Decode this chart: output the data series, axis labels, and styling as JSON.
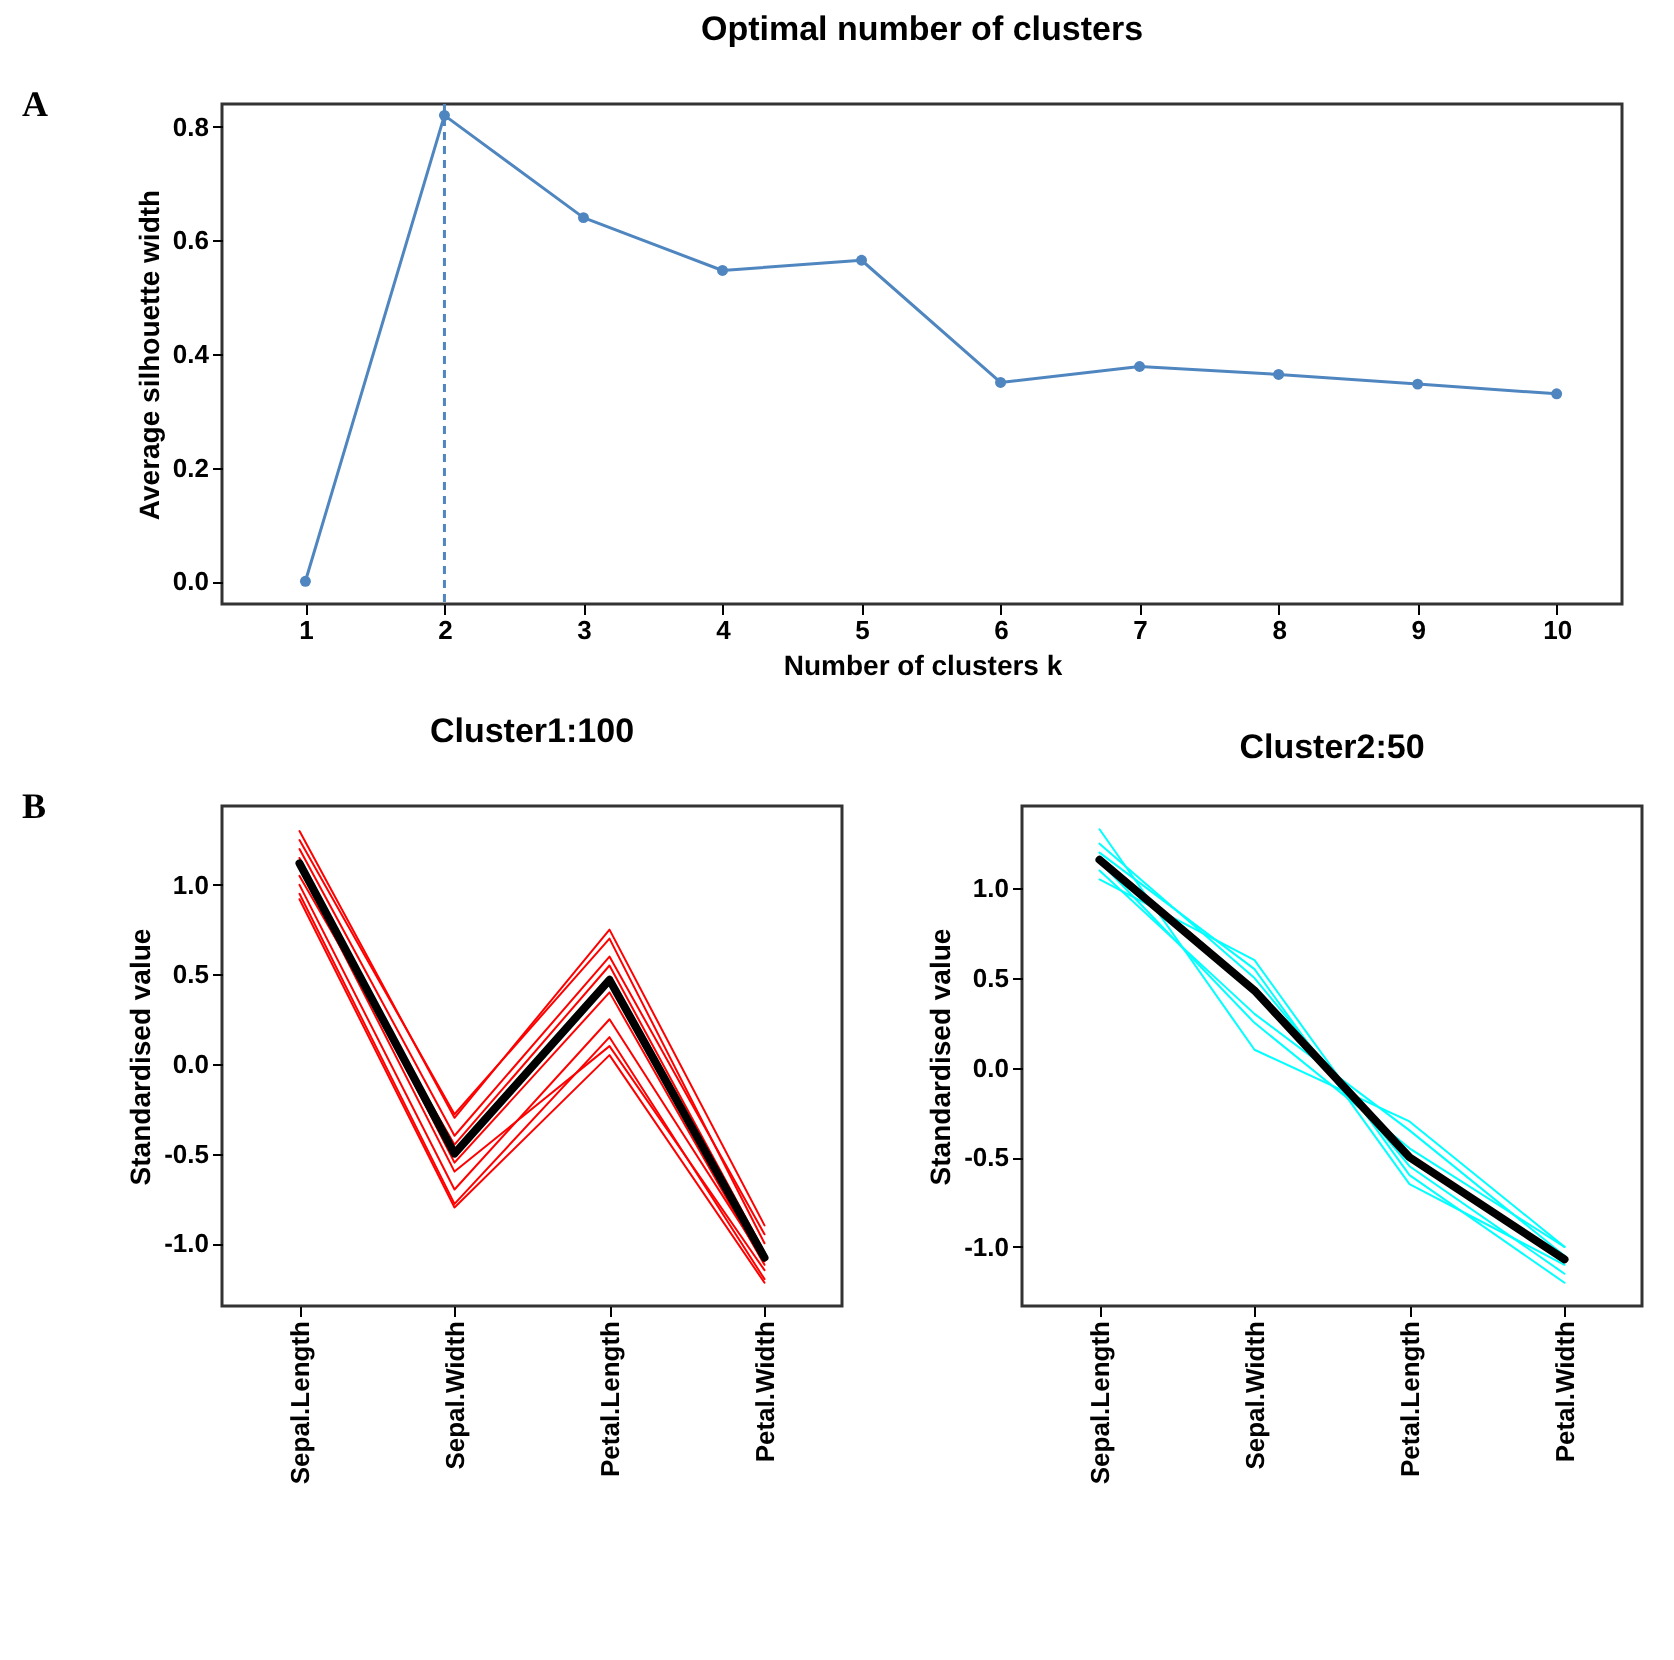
{
  "chart_data": [
    {
      "type": "line",
      "title": "Optimal number of clusters",
      "xlabel": "Number of clusters k",
      "ylabel": "Average silhouette width",
      "annotations": [
        "A"
      ],
      "x": [
        1,
        2,
        3,
        4,
        5,
        6,
        7,
        8,
        9,
        10
      ],
      "series": [
        {
          "color": "#4f86c0",
          "values": [
            0.0,
            0.82,
            0.64,
            0.547,
            0.565,
            0.35,
            0.378,
            0.364,
            0.347,
            0.33
          ]
        }
      ],
      "xlim": [
        0.4,
        10.47
      ],
      "xticks": [
        1,
        2,
        3,
        4,
        5,
        6,
        7,
        8,
        9,
        10
      ],
      "ylim": [
        -0.04,
        0.84
      ],
      "yticks": [
        {
          "value": 0,
          "label": "0.0"
        },
        0.2,
        0.4,
        0.6,
        0.8
      ],
      "ref_lines": [
        {
          "axis": "x",
          "value": 2,
          "color": "#4f86c0",
          "line_style": "dashed"
        }
      ],
      "grid": false,
      "marker": "circle",
      "line_style": "solid"
    },
    {
      "type": "line",
      "title": "Cluster1:100",
      "ylabel": "Standardised value",
      "annotations": [
        "B"
      ],
      "categories": [
        "Sepal.Length",
        "Sepal.Width",
        "Petal.Length",
        "Petal.Width"
      ],
      "series": [
        {
          "color": "#ff0000",
          "values": [
            1.3,
            -0.3,
            0.75,
            -0.9
          ]
        },
        {
          "color": "#ff0000",
          "values": [
            0.92,
            -0.8,
            0.05,
            -1.22
          ]
        },
        {
          "color": "#ff0000",
          "values": [
            1.25,
            -0.28,
            0.7,
            -1.0
          ]
        },
        {
          "color": "#ff0000",
          "values": [
            0.95,
            -0.78,
            0.15,
            -1.2
          ]
        },
        {
          "color": "#ff0000",
          "values": [
            1.0,
            -0.7,
            0.25,
            -1.1
          ]
        },
        {
          "color": "#ff0000",
          "values": [
            1.2,
            -0.4,
            0.6,
            -0.95
          ]
        },
        {
          "color": "#ff0000",
          "values": [
            1.1,
            -0.6,
            0.1,
            -1.15
          ]
        },
        {
          "color": "#ff0000",
          "values": [
            1.05,
            -0.45,
            0.55,
            -1.05
          ]
        },
        {
          "color": "#ff0000",
          "values": [
            1.15,
            -0.55,
            0.4,
            -1.12
          ]
        },
        {
          "color": "#000000",
          "values": [
            1.12,
            -0.5,
            0.47,
            -1.08
          ]
        }
      ],
      "ylim": [
        -1.35,
        1.44
      ],
      "yticks": [
        {
          "value": -1,
          "label": "-1.0"
        },
        -0.5,
        {
          "value": 0,
          "label": "0.0"
        },
        0.5,
        {
          "value": 1,
          "label": "1.0"
        }
      ],
      "grid": false,
      "marker": "none",
      "line_style": "solid"
    },
    {
      "type": "line",
      "title": "Cluster2:50",
      "ylabel": "Standardised value",
      "categories": [
        "Sepal.Length",
        "Sepal.Width",
        "Petal.Length",
        "Petal.Width"
      ],
      "series": [
        {
          "color": "#00ffff",
          "values": [
            1.33,
            0.1,
            -0.3,
            -1.0
          ]
        },
        {
          "color": "#00ffff",
          "values": [
            1.05,
            0.6,
            -0.6,
            -1.2
          ]
        },
        {
          "color": "#00ffff",
          "values": [
            1.2,
            0.55,
            -0.65,
            -1.1
          ]
        },
        {
          "color": "#00ffff",
          "values": [
            1.1,
            0.3,
            -0.35,
            -1.05
          ]
        },
        {
          "color": "#00ffff",
          "values": [
            1.25,
            0.5,
            -0.55,
            -1.15
          ]
        },
        {
          "color": "#00ffff",
          "values": [
            1.15,
            0.25,
            -0.45,
            -1.0
          ]
        },
        {
          "color": "#000000",
          "values": [
            1.16,
            0.43,
            -0.5,
            -1.07
          ]
        }
      ],
      "ylim": [
        -1.33,
        1.46
      ],
      "yticks": [
        {
          "value": -1,
          "label": "-1.0"
        },
        -0.5,
        {
          "value": 0,
          "label": "0.0"
        },
        0.5,
        {
          "value": 1,
          "label": "1.0"
        }
      ],
      "grid": false,
      "marker": "none",
      "line_style": "solid"
    }
  ]
}
